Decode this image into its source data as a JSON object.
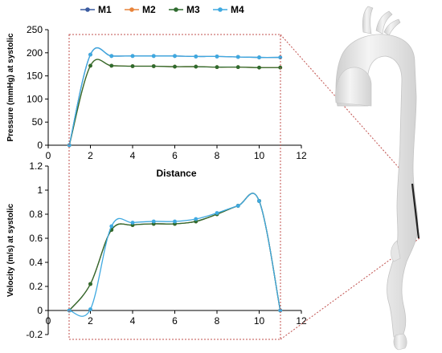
{
  "legend": {
    "items": [
      {
        "name": "M1",
        "color": "#3a5ba0"
      },
      {
        "name": "M2",
        "color": "#e8833a"
      },
      {
        "name": "M3",
        "color": "#2e6b2e"
      },
      {
        "name": "M4",
        "color": "#3fa9e0"
      }
    ]
  },
  "chart_data": [
    {
      "type": "line",
      "ylabel": "Pressure (mmHg) at systolic",
      "xlabel": "Distance",
      "xlim": [
        0,
        12
      ],
      "ylim": [
        0,
        250
      ],
      "xticks": [
        0,
        2,
        4,
        6,
        8,
        10,
        12
      ],
      "yticks": [
        0,
        50,
        100,
        150,
        200,
        250
      ],
      "grid": false,
      "x": [
        1,
        2,
        3,
        4,
        5,
        6,
        7,
        8,
        9,
        10,
        11
      ],
      "series": [
        {
          "name": "M1",
          "values": [
            0,
            196,
            193,
            193,
            193,
            193,
            192,
            192,
            191,
            190,
            190
          ]
        },
        {
          "name": "M2",
          "values": [
            0,
            172,
            172,
            171,
            171,
            170,
            170,
            169,
            169,
            168,
            168
          ]
        },
        {
          "name": "M3",
          "values": [
            0,
            172,
            172,
            171,
            171,
            170,
            170,
            169,
            169,
            168,
            168
          ]
        },
        {
          "name": "M4",
          "values": [
            0,
            196,
            193,
            193,
            193,
            193,
            192,
            192,
            191,
            190,
            190
          ]
        }
      ]
    },
    {
      "type": "line",
      "ylabel": "Velocity (m/s) at systolic",
      "xlabel": "",
      "xlim": [
        0,
        12
      ],
      "ylim": [
        -0.2,
        1.2
      ],
      "xticks": [
        0,
        2,
        4,
        6,
        8,
        10,
        12
      ],
      "yticks": [
        -0.2,
        0,
        0.2,
        0.4,
        0.6,
        0.8,
        1,
        1.2
      ],
      "grid": false,
      "x": [
        1,
        2,
        3,
        4,
        5,
        6,
        7,
        8,
        9,
        10,
        11
      ],
      "series": [
        {
          "name": "M1",
          "values": [
            0,
            0.22,
            0.67,
            0.71,
            0.72,
            0.72,
            0.74,
            0.8,
            0.87,
            0.91,
            0
          ]
        },
        {
          "name": "M2",
          "values": [
            0,
            0.22,
            0.67,
            0.71,
            0.72,
            0.72,
            0.74,
            0.8,
            0.87,
            0.91,
            0
          ]
        },
        {
          "name": "M3",
          "values": [
            0,
            0.22,
            0.67,
            0.71,
            0.72,
            0.72,
            0.74,
            0.8,
            0.87,
            0.91,
            0
          ]
        },
        {
          "name": "M4",
          "values": [
            0,
            0.01,
            0.7,
            0.73,
            0.74,
            0.74,
            0.76,
            0.81,
            0.87,
            0.91,
            0
          ]
        }
      ]
    }
  ]
}
